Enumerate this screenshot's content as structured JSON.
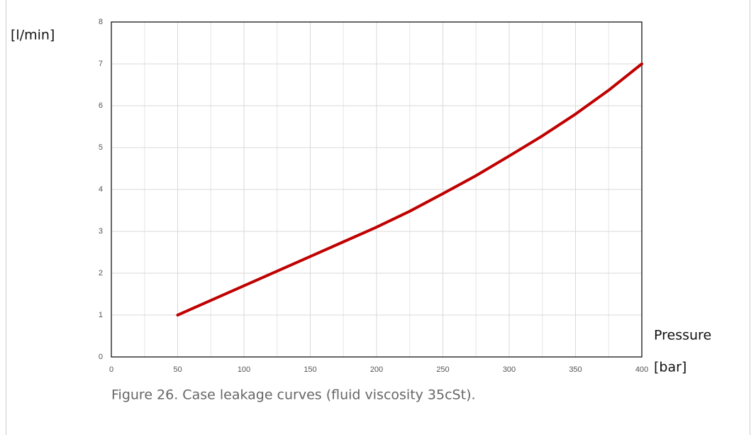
{
  "chart_data": {
    "type": "line",
    "y_label": "[l/min]",
    "x_label": "Pressure",
    "x_unit": "[bar]",
    "caption": "Figure 26. Case leakage curves (fluid viscosity 35cSt).",
    "x": [
      50,
      75,
      100,
      125,
      150,
      175,
      200,
      225,
      250,
      275,
      300,
      325,
      350,
      375,
      400
    ],
    "series": [
      {
        "name": "Case leakage",
        "color": "#c00000",
        "values": [
          1,
          1.35,
          1.7,
          2.05,
          2.4,
          2.75,
          3.1,
          3.48,
          3.9,
          4.33,
          4.8,
          5.28,
          5.8,
          6.37,
          7
        ]
      }
    ],
    "xlim": [
      0,
      400
    ],
    "xticks": [
      0,
      50,
      100,
      150,
      200,
      250,
      300,
      350,
      400
    ],
    "xminorticks": [
      25,
      75,
      125,
      175,
      225,
      275,
      325,
      375
    ],
    "ylim": [
      0,
      8
    ],
    "yticks": [
      0,
      1,
      2,
      3,
      4,
      5,
      6,
      7,
      8
    ],
    "grid": true
  }
}
